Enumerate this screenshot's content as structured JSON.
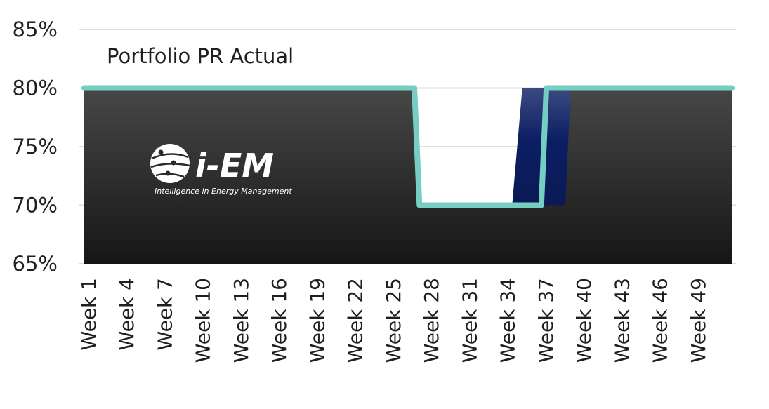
{
  "chart_data": {
    "type": "area",
    "title": "Portfolio PR Actual",
    "xlabel": "",
    "ylabel": "",
    "ylim": [
      65,
      85
    ],
    "y_ticks": [
      "65%",
      "70%",
      "75%",
      "80%",
      "85%"
    ],
    "x_tick_labels": [
      "Week 1",
      "Week 4",
      "Week 7",
      "Week 10",
      "Week 13",
      "Week 16",
      "Week 19",
      "Week 22",
      "Week 25",
      "Week 28",
      "Week 31",
      "Week 34",
      "Week 37",
      "Week 40",
      "Week 43",
      "Week 46",
      "Week 49"
    ],
    "weeks": [
      1,
      52
    ],
    "series": [
      {
        "name": "Portfolio PR Actual",
        "kind": "line",
        "color": "#76cdc2",
        "points": [
          [
            1,
            80
          ],
          [
            27,
            80
          ],
          [
            27.4,
            70
          ],
          [
            37,
            70
          ],
          [
            37.4,
            80
          ],
          [
            52,
            80
          ]
        ]
      }
    ],
    "fill_regions": [
      {
        "kind": "dark-area",
        "color_top": "#474747",
        "color_bottom": "#161616",
        "points": [
          [
            1,
            80
          ],
          [
            27,
            80
          ],
          [
            27.4,
            70
          ],
          [
            37,
            70
          ],
          [
            37.4,
            80
          ],
          [
            52,
            80
          ]
        ]
      },
      {
        "kind": "navy-area",
        "color_top": "#3b4a80",
        "color_bottom": "#0b1a55",
        "points": [
          [
            34.7,
            70
          ],
          [
            35.5,
            80
          ],
          [
            39.3,
            80
          ],
          [
            38.9,
            70
          ]
        ]
      }
    ],
    "grid": true,
    "legend": "none",
    "colors": {
      "grid": "#dddddd",
      "line": "#76cdc2",
      "text": "#1f1f1f"
    }
  },
  "logo": {
    "icon": "globe-circuit-icon",
    "word": "i-EM",
    "tagline": "Intelligence in Energy Management"
  }
}
